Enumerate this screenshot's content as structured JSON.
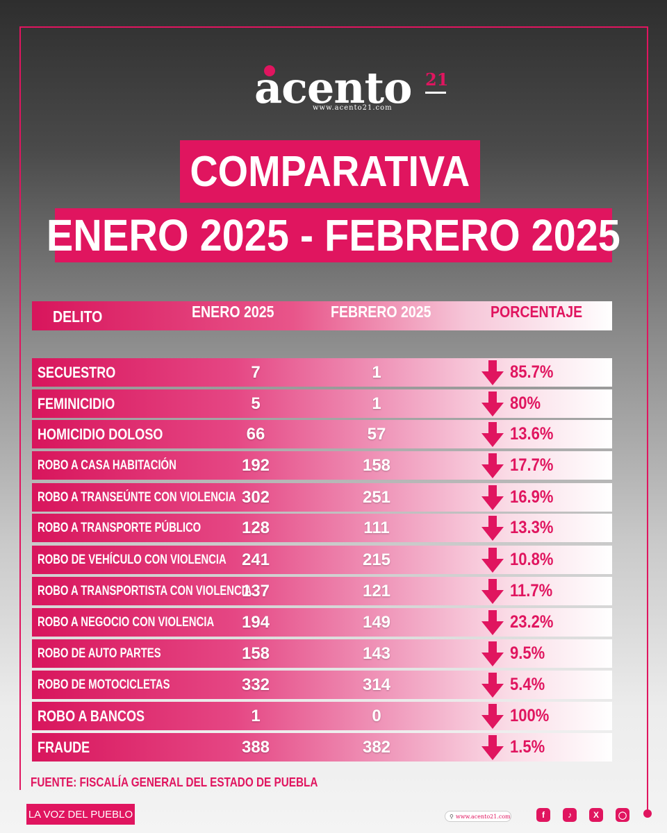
{
  "brand": {
    "name": "acento",
    "number": "21",
    "url": "www.acento21.com"
  },
  "title": {
    "line1": "COMPARATIVA",
    "line2": "ENERO 2025 - FEBRERO 2025"
  },
  "table": {
    "headers": [
      "DELITO",
      "ENERO 2025",
      "FEBRERO 2025",
      "PORCENTAJE"
    ],
    "rows": [
      {
        "delito": "SECUESTRO",
        "enero": "7",
        "febrero": "1",
        "porcentaje": "85.7%",
        "trend": "down"
      },
      {
        "delito": "FEMINICIDIO",
        "enero": "5",
        "febrero": "1",
        "porcentaje": "80%",
        "trend": "down"
      },
      {
        "delito": "HOMICIDIO DOLOSO",
        "enero": "66",
        "febrero": "57",
        "porcentaje": "13.6%",
        "trend": "down"
      },
      {
        "delito": "ROBO A CASA HABITACIÓN",
        "enero": "192",
        "febrero": "158",
        "porcentaje": "17.7%",
        "trend": "down"
      },
      {
        "delito": "ROBO A TRANSEÚNTE CON VIOLENCIA",
        "enero": "302",
        "febrero": "251",
        "porcentaje": "16.9%",
        "trend": "down"
      },
      {
        "delito": "ROBO A TRANSPORTE PÚBLICO",
        "enero": "128",
        "febrero": "111",
        "porcentaje": "13.3%",
        "trend": "down"
      },
      {
        "delito": "ROBO DE VEHÍCULO CON VIOLENCIA",
        "enero": "241",
        "febrero": "215",
        "porcentaje": "10.8%",
        "trend": "down"
      },
      {
        "delito": "ROBO A TRANSPORTISTA CON VIOLENCIA",
        "enero": "137",
        "febrero": "121",
        "porcentaje": "11.7%",
        "trend": "down"
      },
      {
        "delito": "ROBO A NEGOCIO CON VIOLENCIA",
        "enero": "194",
        "febrero": "149",
        "porcentaje": "23.2%",
        "trend": "down"
      },
      {
        "delito": "ROBO DE AUTO PARTES",
        "enero": "158",
        "febrero": "143",
        "porcentaje": "9.5%",
        "trend": "down"
      },
      {
        "delito": "ROBO DE MOTOCICLETAS",
        "enero": "332",
        "febrero": "314",
        "porcentaje": "5.4%",
        "trend": "down"
      },
      {
        "delito": "ROBO A BANCOS",
        "enero": "1",
        "febrero": "0",
        "porcentaje": "100%",
        "trend": "down"
      },
      {
        "delito": "FRAUDE",
        "enero": "388",
        "febrero": "382",
        "porcentaje": "1.5%",
        "trend": "down"
      }
    ]
  },
  "source": "FUENTE: FISCALÍA GENERAL DEL ESTADO DE PUEBLA",
  "footer": {
    "tagline": "LA VOZ DEL PUEBLO",
    "url": "www.acento21.com",
    "social_icons": [
      "facebook-icon",
      "tiktok-icon",
      "x-icon",
      "instagram-icon"
    ]
  },
  "colors": {
    "accent": "#e0155f",
    "text_light": "#ffffff"
  }
}
